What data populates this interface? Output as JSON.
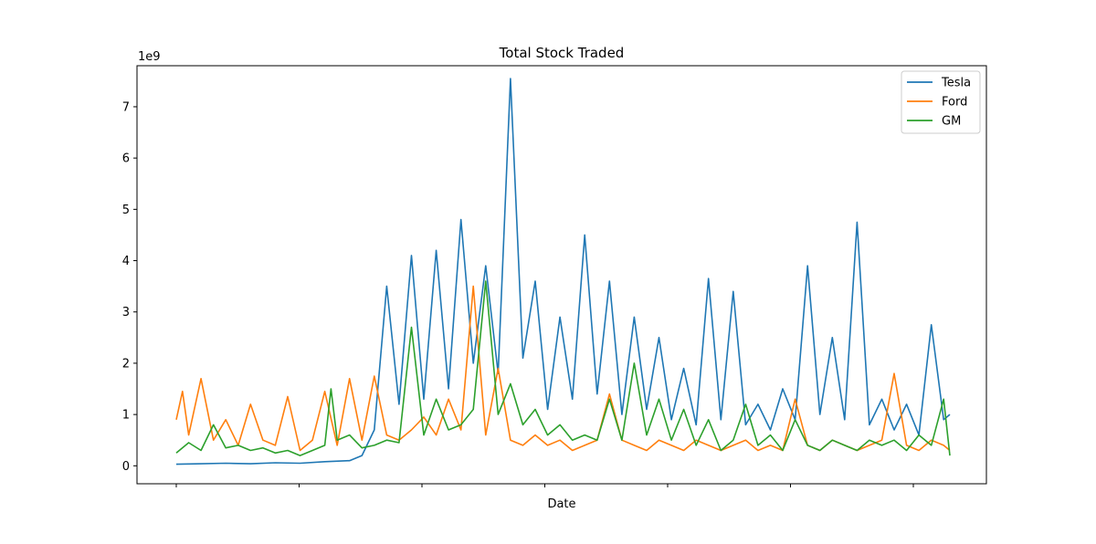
{
  "chart_data": {
    "type": "line",
    "title": "Total Stock Traded",
    "xlabel": "Date",
    "ylabel": "",
    "y_multiplier_label": "1e9",
    "ylim": [
      -0.35,
      7.8
    ],
    "yticks": [
      0,
      1,
      2,
      3,
      4,
      5,
      6,
      7
    ],
    "x_tick_labels": [
      "",
      "",
      "",
      "",
      "",
      "",
      ""
    ],
    "legend_position": "top-right",
    "grid": false,
    "series": [
      {
        "name": "Tesla",
        "color": "#1f77b4",
        "x": [
          0,
          40,
          80,
          120,
          160,
          200,
          240,
          280,
          300,
          320,
          340,
          360,
          380,
          400,
          420,
          440,
          460,
          480,
          500,
          520,
          540,
          560,
          580,
          600,
          620,
          640,
          660,
          680,
          700,
          720,
          740,
          760,
          780,
          800,
          820,
          840,
          860,
          880,
          900,
          920,
          940,
          960,
          980,
          1000,
          1020,
          1040,
          1060,
          1080,
          1100,
          1120,
          1140,
          1160,
          1180,
          1200,
          1220,
          1240,
          1250
        ],
        "values": [
          0.03,
          0.04,
          0.05,
          0.04,
          0.06,
          0.05,
          0.08,
          0.1,
          0.2,
          0.7,
          3.5,
          1.2,
          4.1,
          1.3,
          4.2,
          1.5,
          4.8,
          2.0,
          3.9,
          1.8,
          7.55,
          2.1,
          3.6,
          1.1,
          2.9,
          1.3,
          4.5,
          1.4,
          3.6,
          1.0,
          2.9,
          1.1,
          2.5,
          0.9,
          1.9,
          0.8,
          3.65,
          0.9,
          3.4,
          0.8,
          1.2,
          0.7,
          1.5,
          0.9,
          3.9,
          1.0,
          2.5,
          0.9,
          4.75,
          0.8,
          1.3,
          0.7,
          1.2,
          0.6,
          2.75,
          0.9,
          1.0
        ]
      },
      {
        "name": "Ford",
        "color": "#ff7f0e",
        "x": [
          0,
          10,
          20,
          40,
          60,
          80,
          100,
          120,
          140,
          160,
          180,
          200,
          220,
          240,
          260,
          280,
          300,
          320,
          340,
          360,
          380,
          400,
          420,
          440,
          460,
          480,
          500,
          520,
          540,
          560,
          580,
          600,
          620,
          640,
          660,
          680,
          700,
          720,
          740,
          760,
          780,
          800,
          820,
          840,
          860,
          880,
          900,
          920,
          940,
          960,
          980,
          1000,
          1020,
          1040,
          1060,
          1080,
          1100,
          1120,
          1140,
          1160,
          1180,
          1200,
          1220,
          1240,
          1250
        ],
        "values": [
          0.9,
          1.45,
          0.6,
          1.7,
          0.5,
          0.9,
          0.4,
          1.2,
          0.5,
          0.4,
          1.35,
          0.3,
          0.5,
          1.45,
          0.4,
          1.7,
          0.5,
          1.75,
          0.6,
          0.5,
          0.7,
          0.95,
          0.6,
          1.3,
          0.7,
          3.5,
          0.6,
          1.9,
          0.5,
          0.4,
          0.6,
          0.4,
          0.5,
          0.3,
          0.4,
          0.5,
          1.4,
          0.5,
          0.4,
          0.3,
          0.5,
          0.4,
          0.3,
          0.5,
          0.4,
          0.3,
          0.4,
          0.5,
          0.3,
          0.4,
          0.3,
          1.3,
          0.4,
          0.3,
          0.5,
          0.4,
          0.3,
          0.4,
          0.5,
          1.8,
          0.4,
          0.3,
          0.5,
          0.4,
          0.3
        ]
      },
      {
        "name": "GM",
        "color": "#2ca02c",
        "x": [
          0,
          20,
          40,
          60,
          80,
          100,
          120,
          140,
          160,
          180,
          200,
          220,
          240,
          250,
          260,
          280,
          300,
          320,
          340,
          360,
          380,
          400,
          420,
          440,
          460,
          480,
          500,
          520,
          540,
          560,
          580,
          600,
          620,
          640,
          660,
          680,
          700,
          720,
          740,
          760,
          780,
          800,
          820,
          840,
          860,
          880,
          900,
          920,
          940,
          960,
          980,
          1000,
          1020,
          1040,
          1060,
          1080,
          1100,
          1120,
          1140,
          1160,
          1180,
          1200,
          1220,
          1240,
          1250
        ],
        "values": [
          0.25,
          0.45,
          0.3,
          0.8,
          0.35,
          0.4,
          0.3,
          0.35,
          0.25,
          0.3,
          0.2,
          0.3,
          0.4,
          1.5,
          0.5,
          0.6,
          0.35,
          0.4,
          0.5,
          0.45,
          2.7,
          0.6,
          1.3,
          0.7,
          0.8,
          1.1,
          3.6,
          1.0,
          1.6,
          0.8,
          1.1,
          0.6,
          0.8,
          0.5,
          0.6,
          0.5,
          1.3,
          0.5,
          2.0,
          0.6,
          1.3,
          0.5,
          1.1,
          0.4,
          0.9,
          0.3,
          0.5,
          1.2,
          0.4,
          0.6,
          0.3,
          0.9,
          0.4,
          0.3,
          0.5,
          0.4,
          0.3,
          0.5,
          0.4,
          0.5,
          0.3,
          0.6,
          0.4,
          1.3,
          0.2
        ]
      }
    ]
  }
}
